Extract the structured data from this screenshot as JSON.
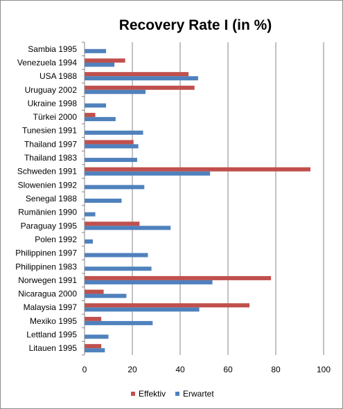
{
  "chart_data": {
    "type": "bar",
    "orientation": "horizontal",
    "title": "Recovery Rate I (in %)",
    "xlabel": "",
    "ylabel": "",
    "xlim": [
      0,
      100
    ],
    "x_ticks": [
      0,
      20,
      40,
      60,
      80,
      100
    ],
    "grid": "vertical",
    "legend_position": "bottom",
    "categories": [
      "Sambia 1995",
      "Venezuela 1994",
      "USA 1988",
      "Uruguay 2002",
      "Ukraine 1998",
      "Türkei 2000",
      "Tunesien 1991",
      "Thailand 1997",
      "Thailand 1983",
      "Schweden 1991",
      "Slowenien 1992",
      "Senegal 1988",
      "Rumänien 1990",
      "Paraguay 1995",
      "Polen 1992",
      "Philippinen 1997",
      "Philippinen 1983",
      "Norwegen 1991",
      "Nicaragua 2000",
      "Malaysia 1997",
      "Mexiko 1995",
      "Lettland 1995",
      "Litauen 1995"
    ],
    "series": [
      {
        "name": "Effektiv",
        "color": "#C0504D",
        "values": [
          0,
          17,
          43.5,
          46,
          0,
          4.5,
          0,
          20.5,
          0,
          94.5,
          0,
          0,
          0,
          23,
          0,
          0,
          0,
          78,
          8,
          69,
          7,
          0,
          7
        ]
      },
      {
        "name": "Erwartet",
        "color": "#4F81BD",
        "values": [
          9,
          12.5,
          47.5,
          25.5,
          9,
          13,
          24.5,
          22.5,
          22,
          52.5,
          25,
          15.5,
          4.5,
          36,
          3.5,
          26.5,
          28,
          53.5,
          17.5,
          48,
          28.5,
          10,
          8.5
        ]
      }
    ]
  }
}
